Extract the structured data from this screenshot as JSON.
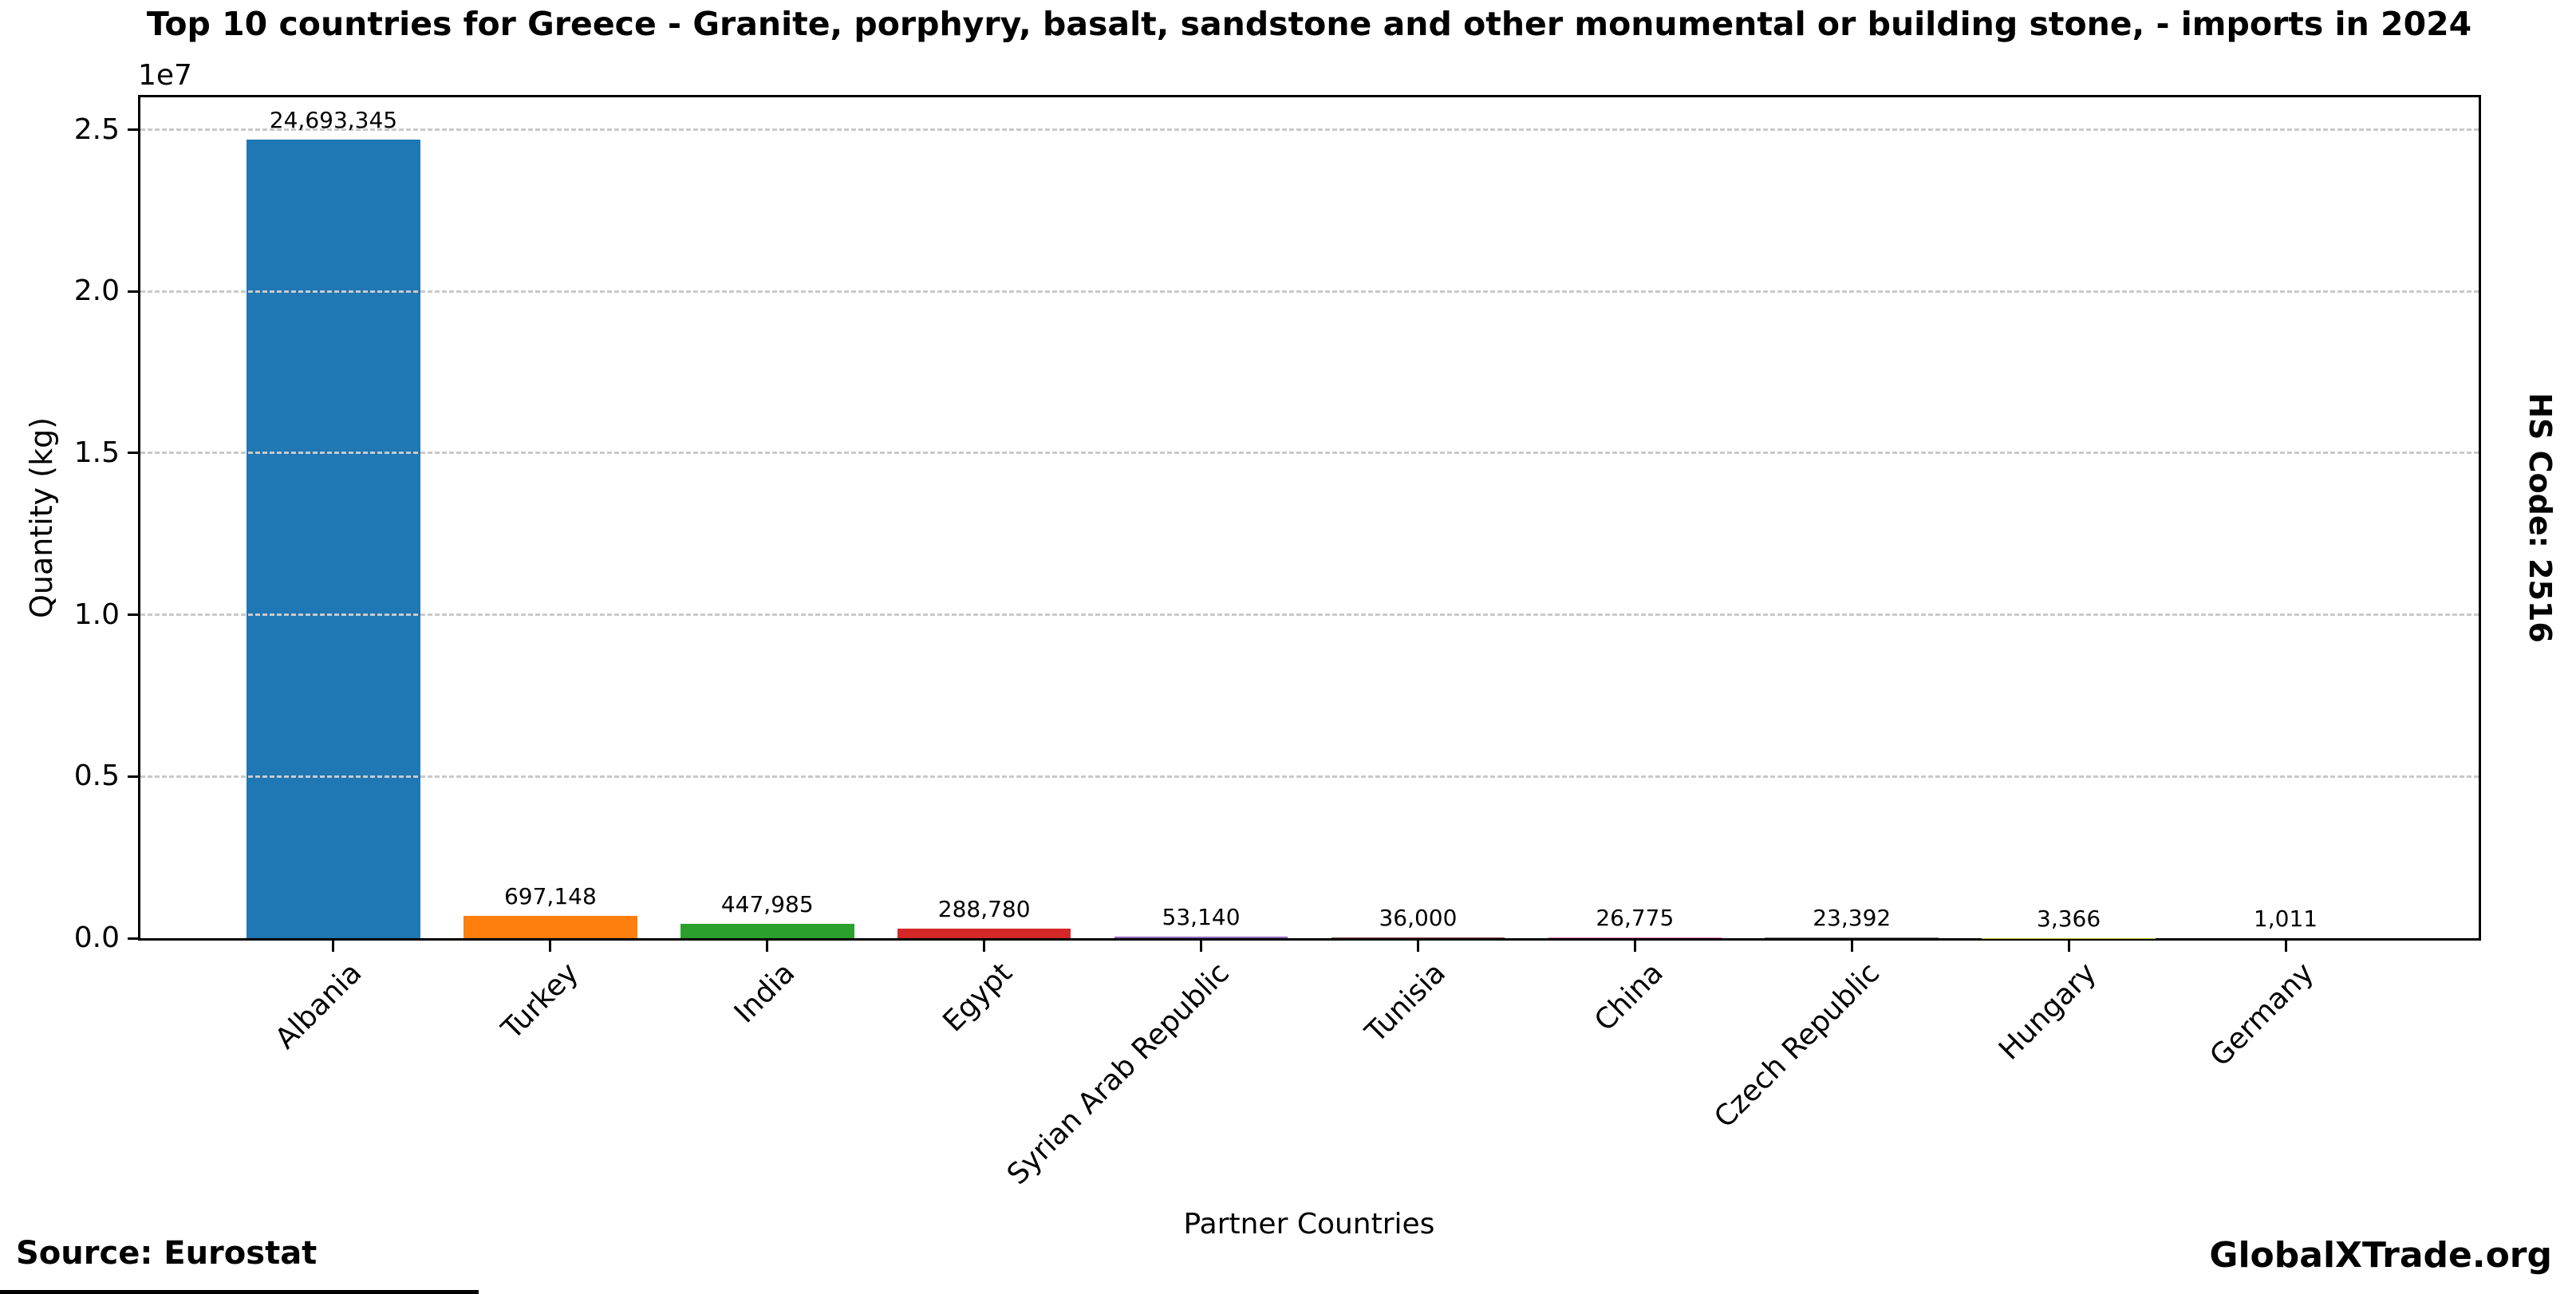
{
  "title": "Top 10 countries for Greece - Granite, porphyry, basalt, sandstone and other monumental or building stone, - imports in 2024",
  "chart_data": {
    "type": "bar",
    "categories": [
      "Albania",
      "Turkey",
      "India",
      "Egypt",
      "Syrian Arab Republic",
      "Tunisia",
      "China",
      "Czech Republic",
      "Hungary",
      "Germany"
    ],
    "values": [
      24693345,
      697148,
      447985,
      288780,
      53140,
      36000,
      26775,
      23392,
      3366,
      1011
    ],
    "value_labels": [
      "24,693,345",
      "697,148",
      "447,985",
      "288,780",
      "53,140",
      "36,000",
      "26,775",
      "23,392",
      "3,366",
      "1,011"
    ],
    "bar_colors": [
      "#1f77b4",
      "#ff7f0e",
      "#2ca02c",
      "#d62728",
      "#9467bd",
      "#8c564b",
      "#e377c2",
      "#7f7f7f",
      "#bcbd22",
      "#17becf"
    ],
    "title": "Top 10 countries for Greece - Granite, porphyry, basalt, sandstone and other monumental or building stone, - imports in 2024",
    "xlabel": "Partner Countries",
    "ylabel": "Quantity (kg)",
    "offset_text": "1e7",
    "ylim": [
      0,
      26000000
    ],
    "yticks": [
      0,
      5000000,
      10000000,
      15000000,
      20000000,
      25000000
    ],
    "ytick_labels": [
      "0.0",
      "0.5",
      "1.0",
      "1.5",
      "2.0",
      "2.5"
    ],
    "grid": "horizontal-dashed",
    "legend": "none",
    "bar_label_rotation": 0,
    "xtick_rotation": 45
  },
  "annotations": {
    "hs_code": "HS Code: 2516",
    "source": "Source: Eurostat",
    "watermark": "GlobalXTrade.org"
  }
}
